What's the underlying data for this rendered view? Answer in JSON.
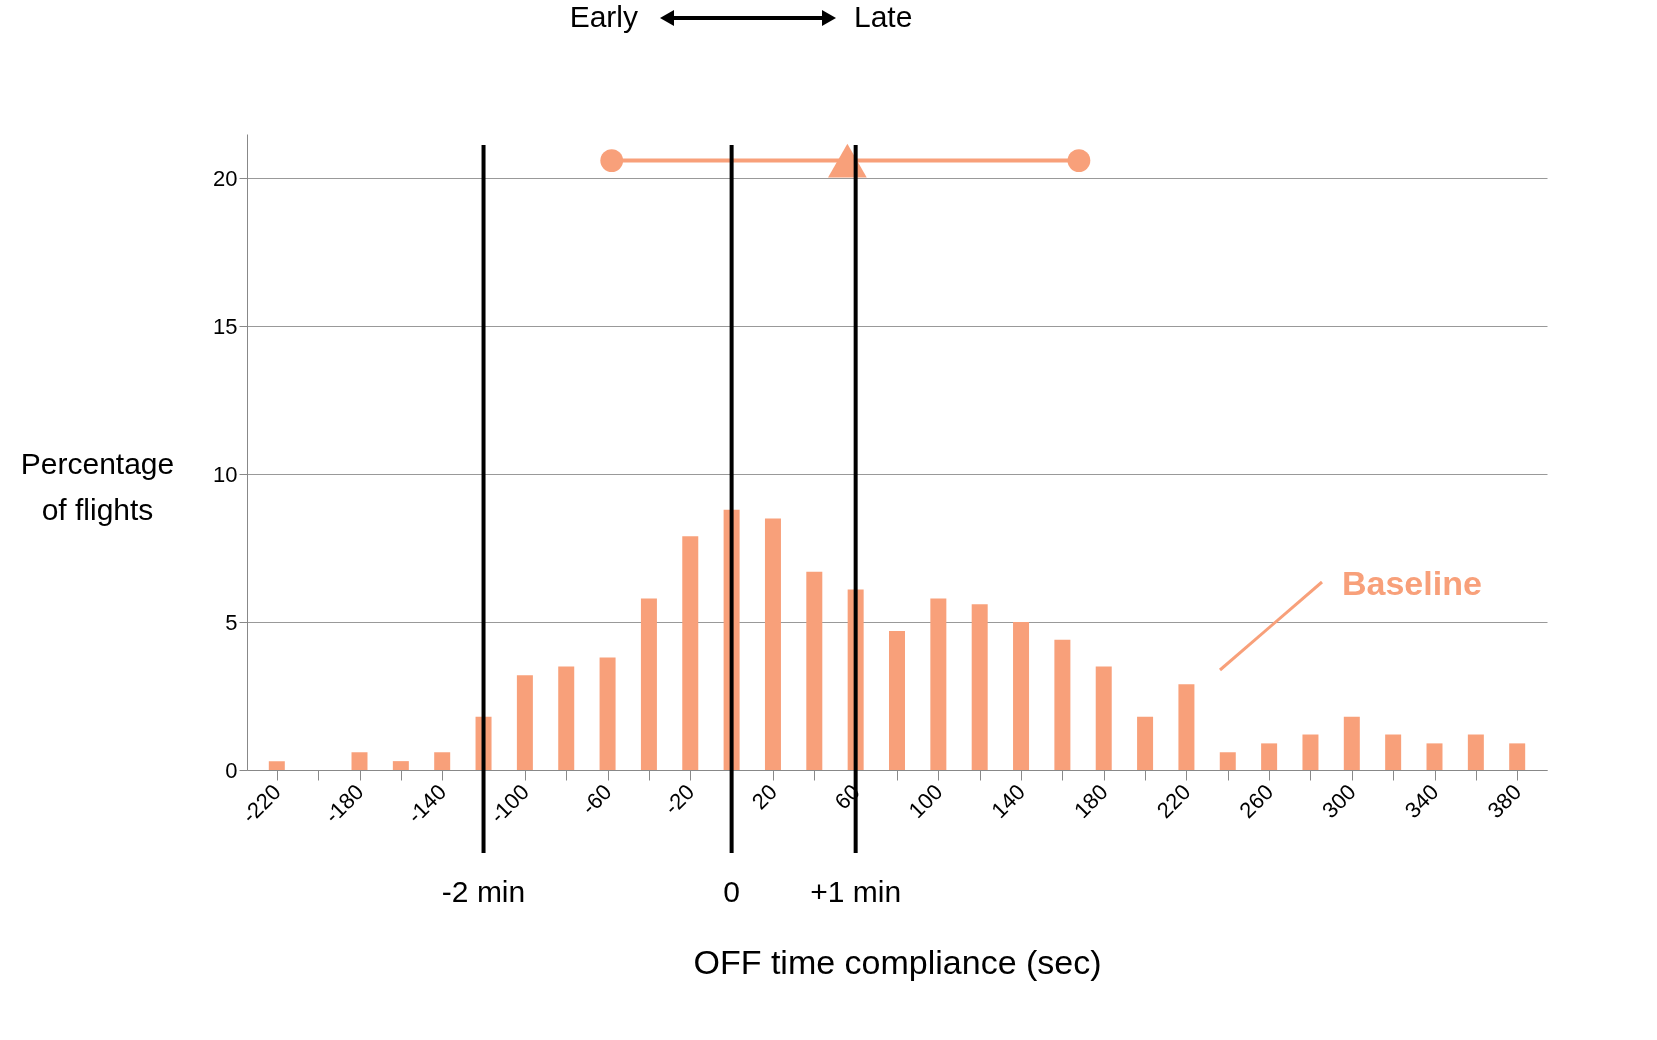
{
  "chart_data": {
    "type": "bar",
    "xlabel": "OFF time compliance (sec)",
    "ylabel": "Percentage of flights",
    "annotations": [
      "Early",
      "Late"
    ],
    "xlim": [
      -232,
      392
    ],
    "ylim": [
      0,
      21.5
    ],
    "xticks": [
      -220,
      {
        "value": -200,
        "label": null
      },
      -180,
      {
        "value": -160,
        "label": null
      },
      -140,
      {
        "value": -120,
        "label": null
      },
      -100,
      {
        "value": -80,
        "label": null
      },
      -60,
      {
        "value": -40,
        "label": null
      },
      -20,
      {
        "value": 0,
        "label": null
      },
      20,
      {
        "value": 40,
        "label": null
      },
      60,
      {
        "value": 80,
        "label": null
      },
      100,
      {
        "value": 120,
        "label": null
      },
      140,
      {
        "value": 160,
        "label": null
      },
      180,
      {
        "value": 200,
        "label": null
      },
      220,
      {
        "value": 240,
        "label": null
      },
      260,
      {
        "value": 280,
        "label": null
      },
      300,
      {
        "value": 320,
        "label": null
      },
      340,
      {
        "value": 360,
        "label": null
      },
      380
    ],
    "yticks": [
      0,
      5,
      10,
      15,
      20
    ],
    "grid": "y",
    "ref_lines": [
      {
        "axis": "x",
        "value": -120,
        "label": "-2 min",
        "color": "#000000"
      },
      {
        "axis": "x",
        "value": 0,
        "label": "0",
        "color": "#000000"
      },
      {
        "axis": "x",
        "value": 60,
        "label": "+1 min",
        "color": "#000000"
      }
    ],
    "series": [
      {
        "name": "Baseline",
        "color": "#f8a07a",
        "x": [
          -220,
          -200,
          -180,
          -160,
          -140,
          -120,
          -100,
          -80,
          -60,
          -40,
          -20,
          0,
          20,
          40,
          60,
          80,
          100,
          120,
          140,
          160,
          180,
          200,
          220,
          240,
          260,
          280,
          300,
          320,
          340,
          360,
          380
        ],
        "values": [
          0.3,
          0,
          0.6,
          0.3,
          0.6,
          1.8,
          3.2,
          3.5,
          3.8,
          5.8,
          7.9,
          8.8,
          8.5,
          6.7,
          6.1,
          4.7,
          5.8,
          5.6,
          5.0,
          4.4,
          3.5,
          1.8,
          2.9,
          0.6,
          0.9,
          1.2,
          1.8,
          1.2,
          0.9,
          1.2,
          0.9
        ]
      },
      {
        "type": "line",
        "color": "#f8a07a",
        "x": [
          -58,
          168
        ],
        "values": [
          20.6,
          20.6
        ],
        "marker": "circle"
      },
      {
        "type": "scatter",
        "color": "#f8a07a",
        "x": [
          56
        ],
        "values": [
          20.6
        ],
        "marker": "triangle"
      }
    ]
  }
}
